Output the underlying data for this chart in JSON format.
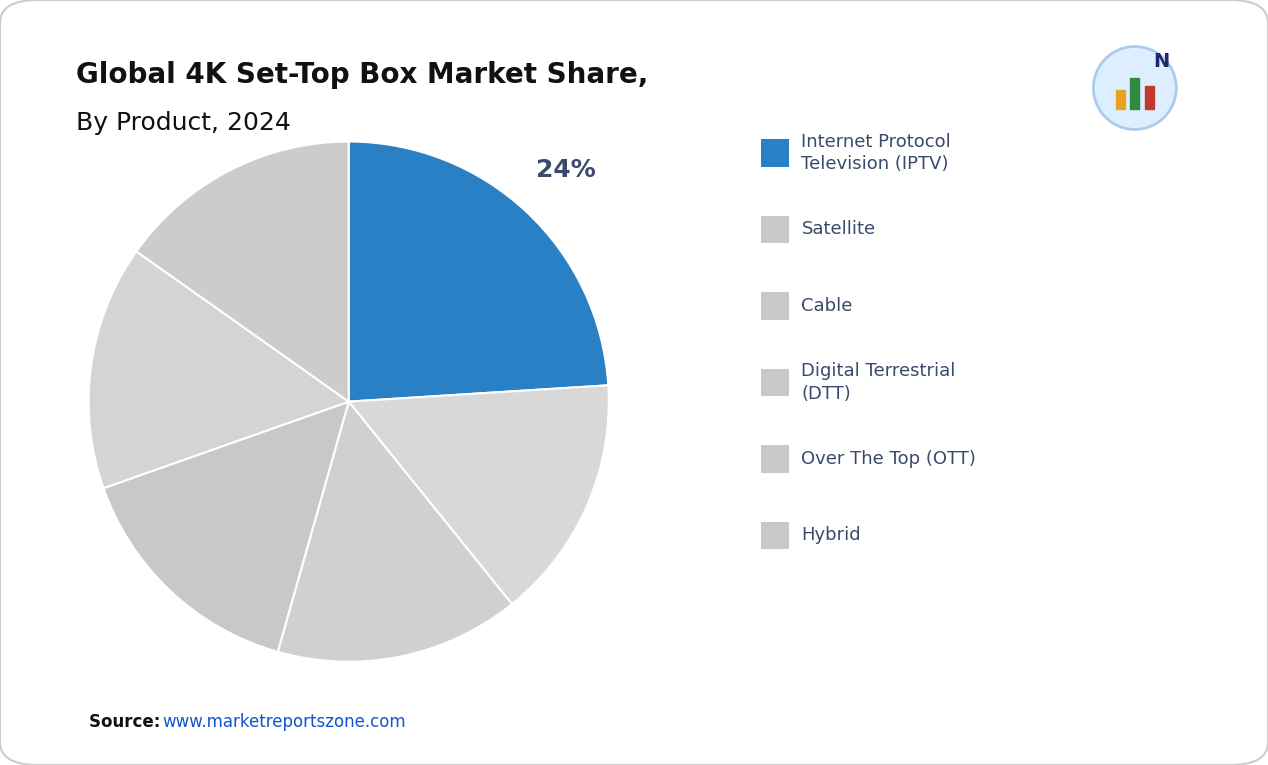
{
  "title_line1": "Global 4K Set-Top Box Market Share,",
  "title_line2": "By Product, 2024",
  "slices": [
    24,
    15.2,
    15.2,
    15.2,
    15.2,
    15.2
  ],
  "labels": [
    "Internet Protocol\nTelevision (IPTV)",
    "Satellite",
    "Cable",
    "Digital Terrestrial\n(DTT)",
    "Over The Top (OTT)",
    "Hybrid"
  ],
  "colors": [
    "#2980c4",
    "#d8d8d8",
    "#d0d0d0",
    "#c8c8c8",
    "#d4d4d4",
    "#cccccc"
  ],
  "legend_marker_color_iptv": "#2980c4",
  "legend_marker_color_others": "#c8c8c8",
  "autopct_value": "24%",
  "source_bold": "Source",
  "source_url": "www.marketreportszone.com",
  "background_color": "#ffffff",
  "title_color": "#111111",
  "legend_text_color": "#3a4a6b",
  "pct_label_color": "#3a4a6b",
  "startangle": 90
}
